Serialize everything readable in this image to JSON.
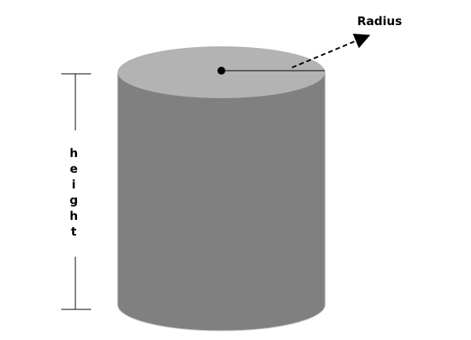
{
  "labels": {
    "radius": "Radius",
    "height": "height"
  }
}
